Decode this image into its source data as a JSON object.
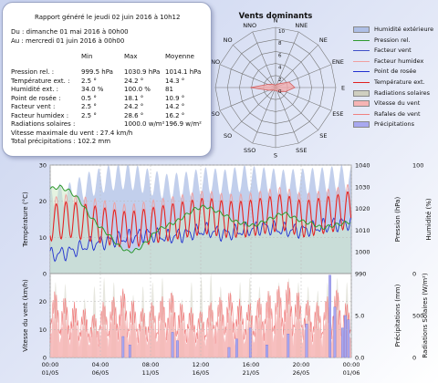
{
  "report": {
    "title": "Rapport généré le jeudi 02 juin 2016 à 10h12",
    "from": "Du : dimanche 01 mai 2016 à 00h00",
    "to": "Au : mercredi 01 juin 2016 à 00h00",
    "headers": {
      "min": "Min",
      "max": "Max",
      "avg": "Moyenne"
    },
    "rows": [
      {
        "label": "Pression rel. :",
        "min": "999.5 hPa",
        "max": "1030.9 hPa",
        "avg": "1014.1 hPa"
      },
      {
        "label": "Température ext. :",
        "min": "2.5 °",
        "max": "24.2 °",
        "avg": "14.3 °"
      },
      {
        "label": "Humidité ext. :",
        "min": "34.0 %",
        "max": "100.0 %",
        "avg": "81"
      },
      {
        "label": "Point de rosée :",
        "min": "0.5 °",
        "max": "18.1 °",
        "avg": "10.9 °"
      },
      {
        "label": "Facteur vent :",
        "min": "2.5 °",
        "max": "24.2 °",
        "avg": "14.2 °"
      },
      {
        "label": "Facteur humidex :",
        "min": "2.5 °",
        "max": "28.6 °",
        "avg": "16.2 °"
      },
      {
        "label": "Radiations solaires :",
        "min": "",
        "max": "1000.0 w/m²",
        "avg": "196.9 w/m²"
      }
    ],
    "max_wind": "Vitesse maximale du vent : 27.4 km/h",
    "total_rain": "Total précipitations : 102.2 mm"
  },
  "legend": [
    {
      "label": "Humidité extérieure",
      "color": "#aebfe6",
      "kind": "fill"
    },
    {
      "label": "Pression rel.",
      "color": "#2e9a2e",
      "kind": "line"
    },
    {
      "label": "Facteur vent",
      "color": "#4050c8",
      "kind": "line"
    },
    {
      "label": "Facteur humidex",
      "color": "#f0a0a0",
      "kind": "line"
    },
    {
      "label": "Point de rosée",
      "color": "#2030d0",
      "kind": "line"
    },
    {
      "label": "Température ext.",
      "color": "#e02020",
      "kind": "line"
    },
    {
      "label": "Radiations solaires",
      "color": "#cfcfc0",
      "kind": "fill"
    },
    {
      "label": "Vitesse du vent",
      "color": "#f6b4b4",
      "kind": "fill"
    },
    {
      "label": "Rafales de vent",
      "color": "#f08080",
      "kind": "line"
    },
    {
      "label": "Précipitations",
      "color": "#a8a8f0",
      "kind": "fill"
    }
  ],
  "colors": {
    "humidity": "#aebfe6",
    "pressure": "#2e9a2e",
    "windchill": "#4050c8",
    "humidex": "#f0a0a0",
    "dewpoint": "#2030d0",
    "temperature": "#e02020",
    "solar": "#cfcfc0",
    "wind_speed": "#f6b4b4",
    "gust": "#f08080",
    "rain": "#a8a8f0",
    "rose_fill": "#f4a8a8",
    "rose_grid": "#777777"
  },
  "chart_data": [
    {
      "type": "radar",
      "title": "Vents dominants",
      "directions": [
        "N",
        "NNE",
        "NE",
        "ENE",
        "E",
        "ESE",
        "SE",
        "SSE",
        "S",
        "SSO",
        "SO",
        "OSO",
        "O",
        "ONO",
        "NO",
        "NNO"
      ],
      "radial_ticks": [
        0,
        2,
        4,
        6,
        8,
        10
      ],
      "values": [
        0.4,
        0.6,
        0.9,
        2.4,
        3.2,
        1.8,
        1.0,
        0.6,
        0.5,
        0.5,
        0.6,
        1.2,
        4.2,
        1.4,
        0.8,
        0.5
      ]
    },
    {
      "type": "line",
      "x_ticks": [
        {
          "time": "00:00",
          "date": "01/05"
        },
        {
          "time": "04:00",
          "date": "06/05"
        },
        {
          "time": "08:00",
          "date": "11/05"
        },
        {
          "time": "12:00",
          "date": "16/05"
        },
        {
          "time": "16:00",
          "date": "21/05"
        },
        {
          "time": "20:00",
          "date": "26/05"
        },
        {
          "time": "00:00",
          "date": "01/06"
        }
      ],
      "xlim": [
        0,
        31
      ],
      "y_left": {
        "label": "Température (°C)",
        "ticks": [
          0,
          10,
          20,
          30
        ],
        "lim": [
          0,
          30
        ]
      },
      "y_right1": {
        "label": "Pression (hPa)",
        "ticks": [
          990,
          1000,
          1010,
          1020,
          1030,
          1040
        ],
        "lim": [
          990,
          1040
        ]
      },
      "y_right2": {
        "label": "Humidité (%)",
        "ticks": [
          0,
          100
        ],
        "lim": [
          0,
          100
        ]
      },
      "series": [
        {
          "name": "Pression rel.",
          "axis": "right1",
          "x": [
            0,
            1,
            2,
            3,
            4,
            5,
            6,
            7,
            8,
            9,
            10,
            11,
            12,
            13,
            14,
            15,
            16,
            17,
            18,
            19,
            20,
            21,
            22,
            23,
            24,
            25,
            26,
            27,
            28,
            29,
            30,
            31
          ],
          "values": [
            1029,
            1030,
            1028,
            1024,
            1017,
            1012,
            1008,
            1003,
            1000,
            1001,
            1005,
            1010,
            1012,
            1014,
            1017,
            1020,
            1021,
            1019,
            1017,
            1014,
            1013,
            1012,
            1014,
            1016,
            1018,
            1016,
            1014,
            1013,
            1011,
            1012,
            1013,
            1014
          ]
        },
        {
          "name": "Température ext.",
          "axis": "left",
          "x": [
            0,
            2,
            4,
            6,
            8,
            10,
            12,
            14,
            16,
            18,
            20,
            22,
            24,
            26,
            28,
            30,
            31
          ],
          "values": [
            14,
            15,
            14,
            13,
            12,
            13,
            14,
            15,
            16,
            15,
            15,
            16,
            17,
            15,
            16,
            17,
            18
          ],
          "daily_amplitude": 5
        },
        {
          "name": "Point de rosée",
          "axis": "left",
          "x": [
            0,
            2,
            4,
            6,
            8,
            10,
            12,
            14,
            16,
            18,
            20,
            22,
            24,
            26,
            28,
            30,
            31
          ],
          "values": [
            5,
            6,
            8,
            9,
            10,
            11,
            10,
            11,
            12,
            11,
            12,
            13,
            12,
            12,
            13,
            14,
            14
          ]
        },
        {
          "name": "Humidité extérieure",
          "axis": "right2",
          "x": [
            0,
            2,
            4,
            6,
            8,
            10,
            12,
            14,
            16,
            18,
            20,
            22,
            24,
            26,
            28,
            30,
            31
          ],
          "values": [
            70,
            72,
            82,
            88,
            90,
            85,
            80,
            82,
            86,
            84,
            88,
            86,
            84,
            85,
            86,
            88,
            86
          ]
        }
      ]
    },
    {
      "type": "bar",
      "xlim": [
        0,
        31
      ],
      "y_left": {
        "label": "Vitesse du vent (km/h)",
        "ticks": [
          0,
          10,
          20
        ],
        "lim": [
          0,
          30
        ]
      },
      "y_right1": {
        "label": "Précipitations (mm)",
        "ticks": [
          0.0,
          5.0
        ],
        "lim": [
          0,
          10
        ]
      },
      "y_right2": {
        "label": "Radiations Solaires (W/m²)",
        "ticks": [
          0,
          500
        ],
        "lim": [
          0,
          1000
        ]
      },
      "series": [
        {
          "name": "Radiations solaires",
          "axis": "right2",
          "daily_peak": [
            900,
            880,
            600,
            700,
            850,
            950,
            900,
            800,
            750,
            850,
            900,
            950,
            800,
            700,
            900,
            950,
            1000,
            850,
            800,
            900,
            950,
            850,
            800,
            900,
            950,
            900,
            850,
            800,
            900,
            950,
            900
          ]
        },
        {
          "name": "Vitesse du vent",
          "axis": "left",
          "daily_peak": [
            18,
            17,
            16,
            14,
            12,
            15,
            18,
            20,
            16,
            14,
            15,
            17,
            19,
            16,
            14,
            13,
            15,
            17,
            18,
            16,
            15,
            17,
            19,
            20,
            22,
            18,
            16,
            15,
            17,
            20,
            15
          ]
        },
        {
          "name": "Rafales de vent",
          "axis": "left",
          "daily_peak": [
            24,
            22,
            20,
            18,
            16,
            20,
            22,
            25,
            21,
            18,
            20,
            22,
            24,
            20,
            18,
            17,
            20,
            22,
            24,
            21,
            20,
            22,
            24,
            26,
            27.4,
            24,
            21,
            20,
            22,
            25,
            20
          ]
        },
        {
          "name": "Précipitations",
          "axis": "right1",
          "x": [
            7.5,
            8.2,
            12.6,
            13.1,
            18.4,
            19.2,
            20.6,
            22.3,
            24.5,
            26.4,
            28.8,
            29.3,
            30.1,
            30.4,
            30.7
          ],
          "values": [
            2.5,
            1.5,
            3.0,
            2.0,
            1.2,
            2.2,
            3.5,
            1.5,
            2.8,
            4.0,
            9.8,
            6.0,
            3.5,
            5.0,
            4.5
          ]
        }
      ]
    }
  ]
}
